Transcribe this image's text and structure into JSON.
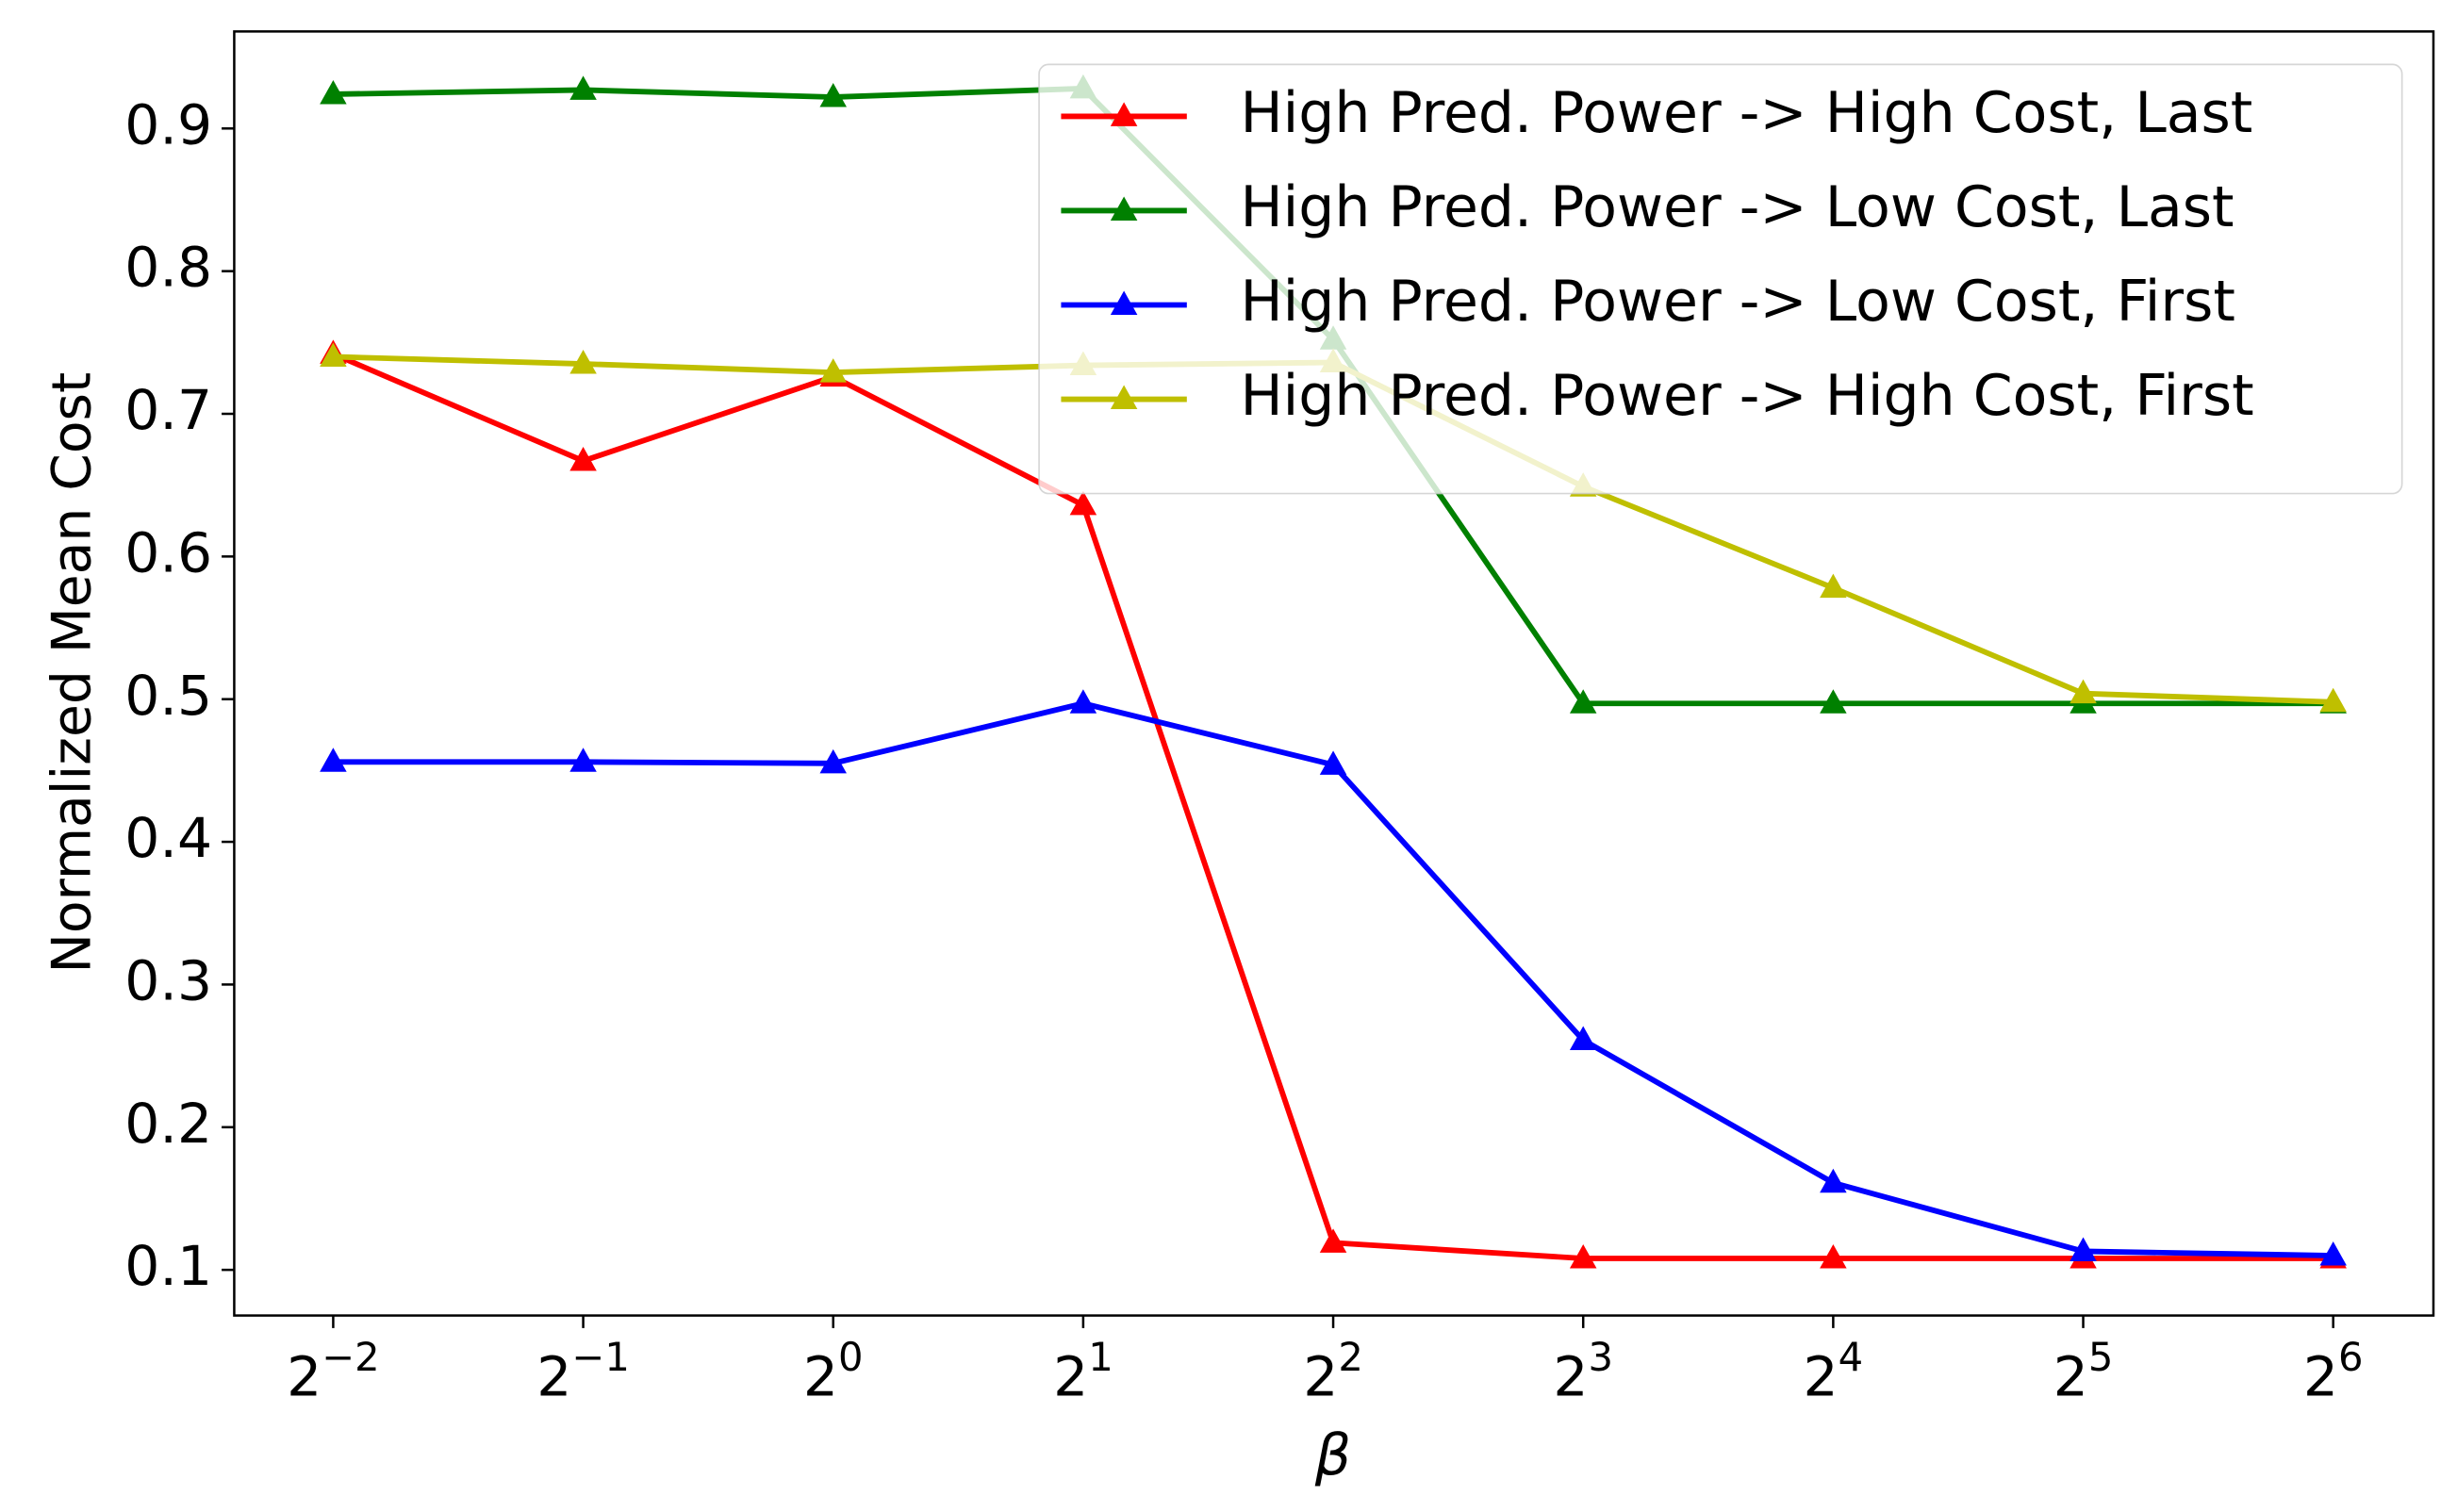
{
  "chart_data": {
    "type": "line",
    "xlabel": "β",
    "ylabel": "Normalized Mean Cost",
    "x": [
      0.25,
      0.5,
      1,
      2,
      4,
      8,
      16,
      32,
      64
    ],
    "xscale": "log",
    "xlim": [
      0.19,
      84.5
    ],
    "xticks": [
      {
        "value": 0.25,
        "label": "2",
        "exponent": "−2"
      },
      {
        "value": 0.5,
        "label": "2",
        "exponent": "−1"
      },
      {
        "value": 1,
        "label": "2",
        "exponent": "0"
      },
      {
        "value": 2,
        "label": "2",
        "exponent": "1"
      },
      {
        "value": 4,
        "label": "2",
        "exponent": "2"
      },
      {
        "value": 8,
        "label": "2",
        "exponent": "3"
      },
      {
        "value": 16,
        "label": "2",
        "exponent": "4"
      },
      {
        "value": 32,
        "label": "2",
        "exponent": "5"
      },
      {
        "value": 64,
        "label": "2",
        "exponent": "6"
      }
    ],
    "ylim": [
      0.068,
      0.968
    ],
    "yticks": [
      0.1,
      0.2,
      0.3,
      0.4,
      0.5,
      0.6,
      0.7,
      0.8,
      0.9
    ],
    "grid": false,
    "legend": "upper right",
    "series": [
      {
        "name": "High Pred. Power -> High Cost, Last",
        "color": "#ff0000",
        "values": [
          0.742,
          0.667,
          0.726,
          0.636,
          0.119,
          0.108,
          0.108,
          0.108,
          0.108
        ]
      },
      {
        "name": "High Pred. Power -> Low Cost, Last",
        "color": "#008000",
        "values": [
          0.924,
          0.927,
          0.922,
          0.928,
          0.752,
          0.497,
          0.497,
          0.497,
          0.497
        ]
      },
      {
        "name": "High Pred. Power -> Low Cost, First",
        "color": "#0000ff",
        "values": [
          0.456,
          0.456,
          0.455,
          0.497,
          0.454,
          0.261,
          0.161,
          0.113,
          0.11
        ]
      },
      {
        "name": "High Pred. Power -> High Cost, First",
        "color": "#bfbf00",
        "values": [
          0.74,
          0.735,
          0.729,
          0.734,
          0.736,
          0.649,
          0.578,
          0.504,
          0.498
        ]
      }
    ]
  }
}
